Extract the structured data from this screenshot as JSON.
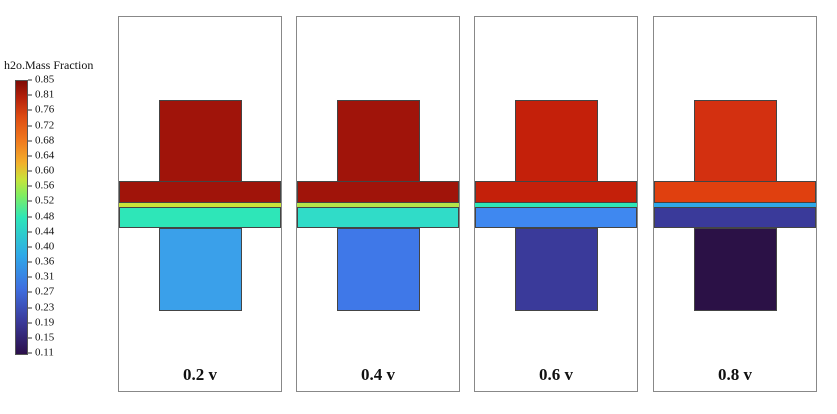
{
  "legend": {
    "title": "h2o.Mass Fraction",
    "ticks": [
      "0.85",
      "0.81",
      "0.76",
      "0.72",
      "0.68",
      "0.64",
      "0.60",
      "0.56",
      "0.52",
      "0.48",
      "0.44",
      "0.40",
      "0.36",
      "0.31",
      "0.27",
      "0.23",
      "0.19",
      "0.15",
      "0.11"
    ]
  },
  "panels": [
    {
      "label": "0.2 v",
      "colors": {
        "top_block": "#a0140a",
        "top_layer": "#a0140a",
        "band": "#c8e33a",
        "mid_layer": "#2ee6b8",
        "bottom_block": "#3aa0ea"
      }
    },
    {
      "label": "0.4 v",
      "colors": {
        "top_block": "#a0140a",
        "top_layer": "#a0140a",
        "band": "#b4e44a",
        "mid_layer": "#30dcc8",
        "bottom_block": "#3f78e8"
      }
    },
    {
      "label": "0.6 v",
      "colors": {
        "top_block": "#c4200a",
        "top_layer": "#c4200a",
        "band": "#2ee6b8",
        "mid_layer": "#3f88f0",
        "bottom_block": "#3a3a9a"
      }
    },
    {
      "label": "0.8 v",
      "colors": {
        "top_block": "#d33010",
        "top_layer": "#e0400f",
        "band": "#2fa8e8",
        "mid_layer": "#3a3a9a",
        "bottom_block": "#2b1146"
      }
    }
  ]
}
